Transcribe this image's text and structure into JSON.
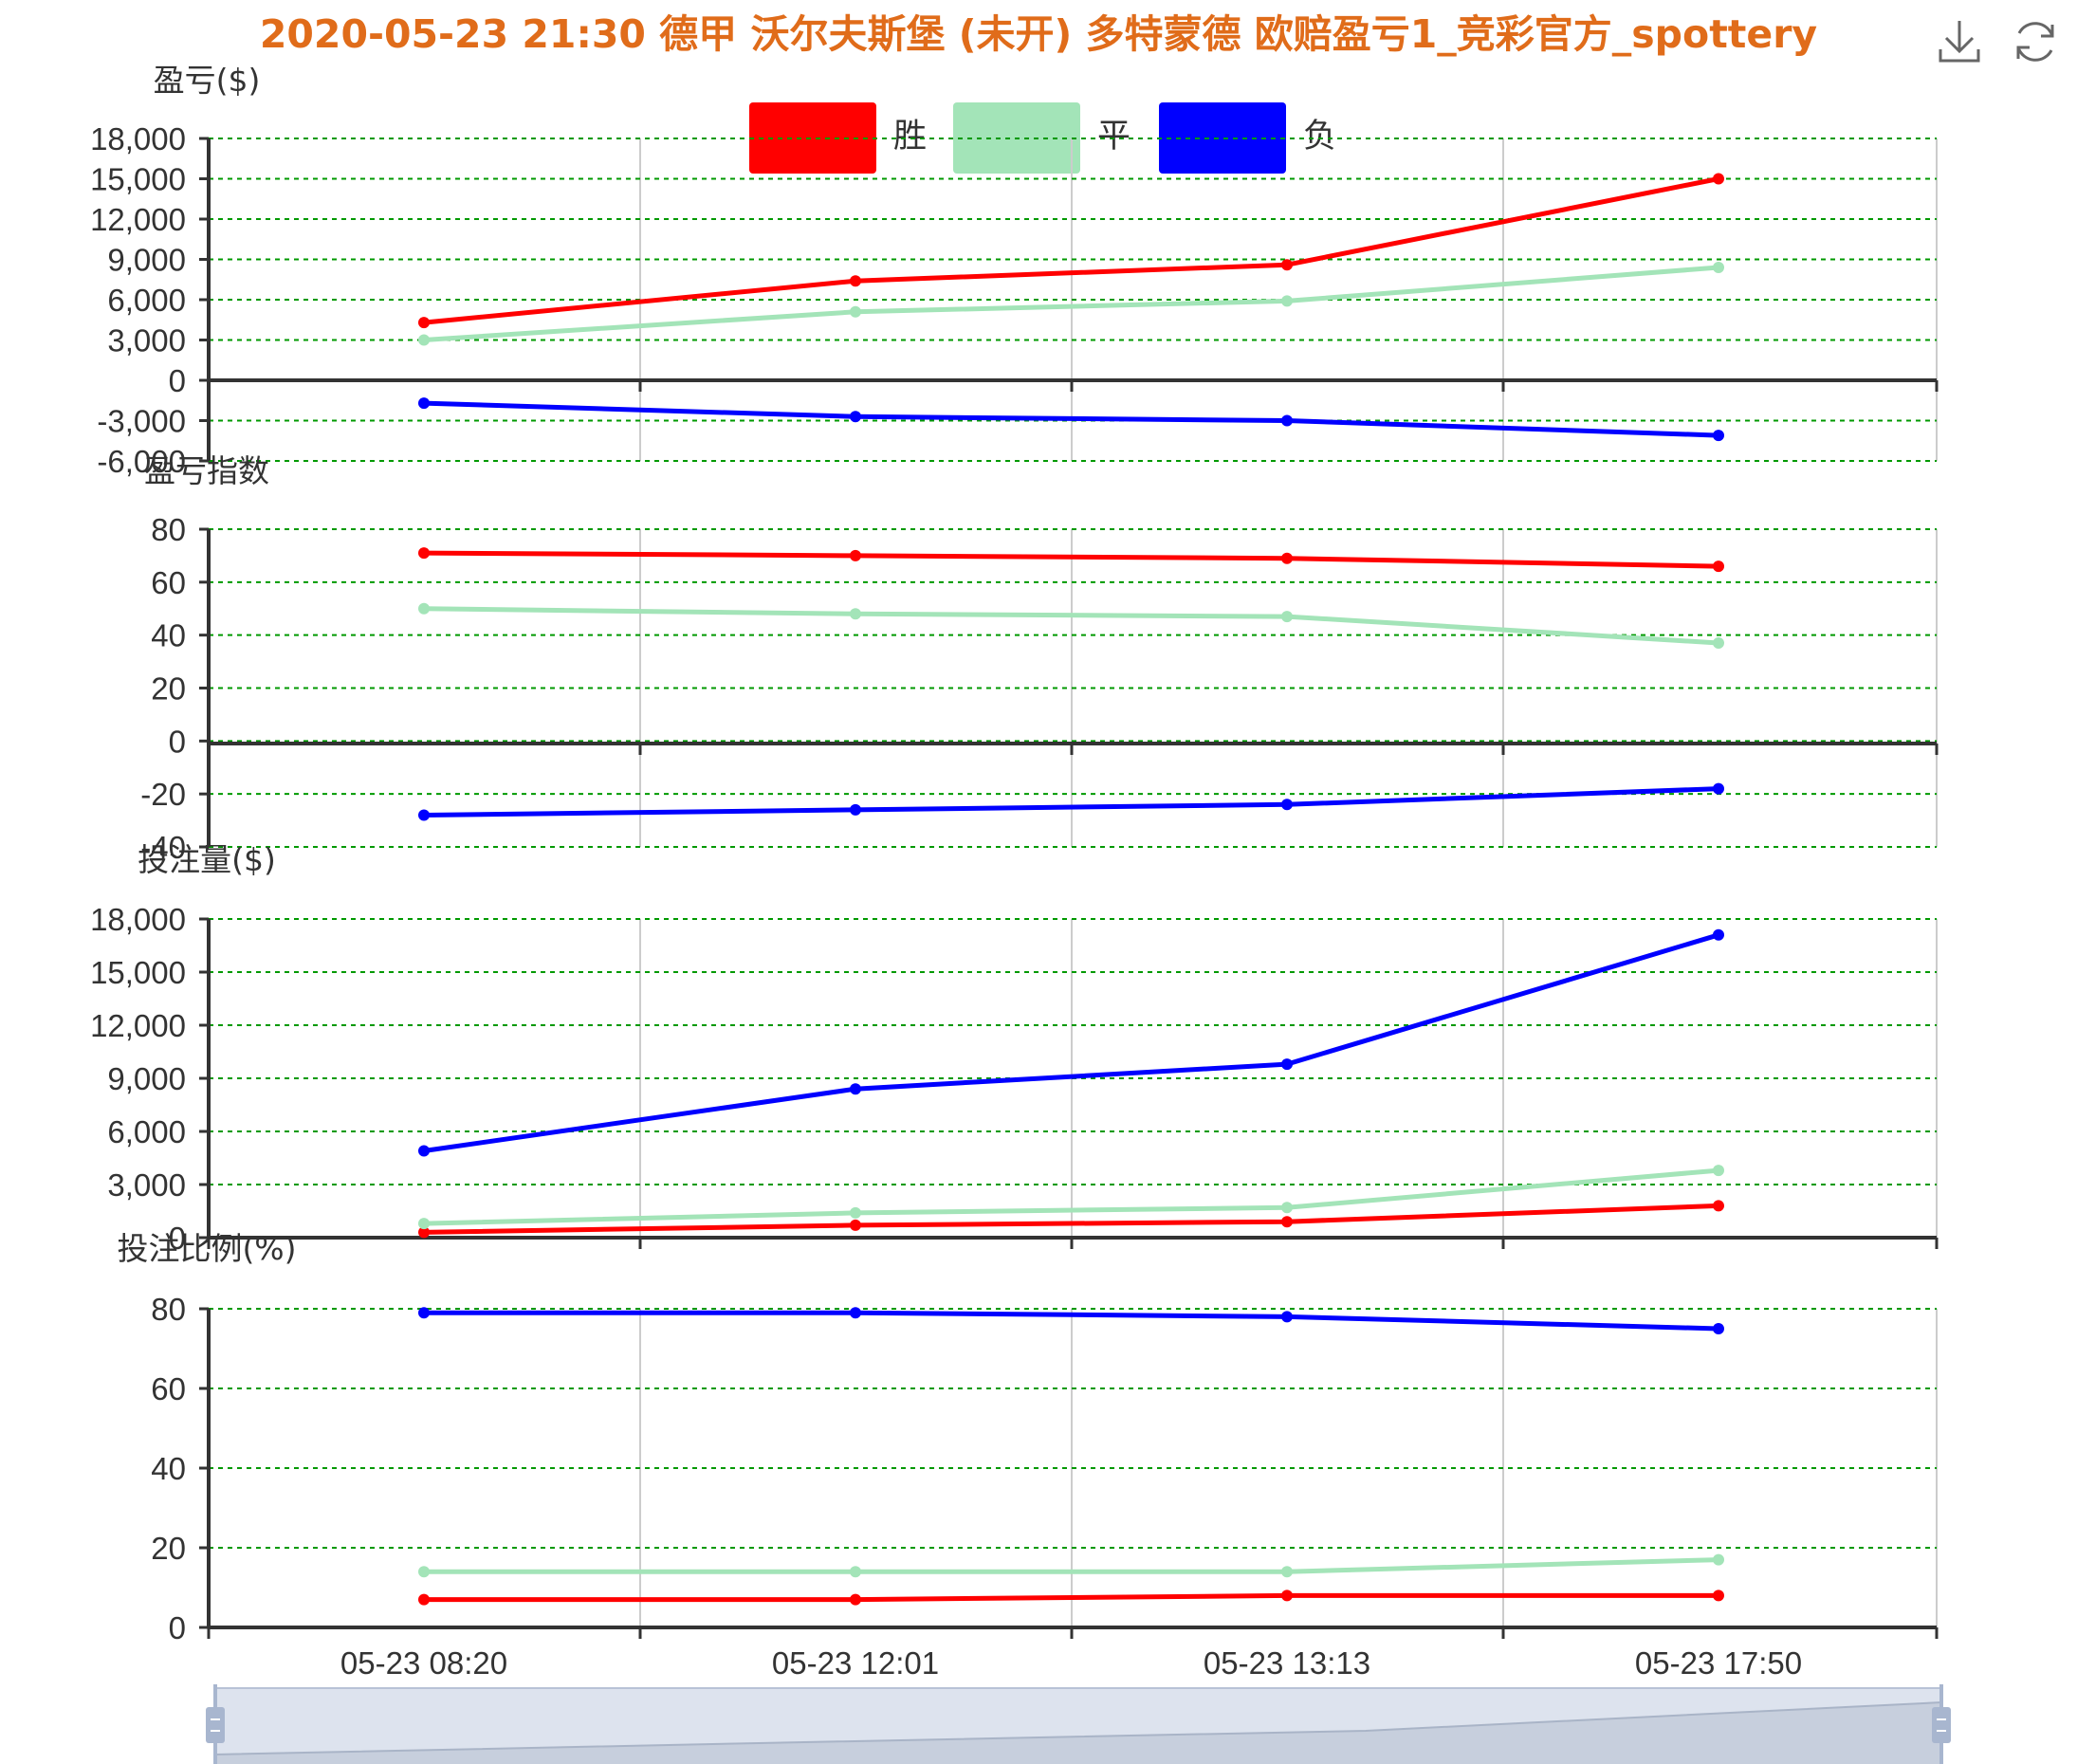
{
  "title": "2020-05-23 21:30 德甲 沃尔夫斯堡 (未开) 多特蒙德 欧赔盈亏1_竞彩官方_spottery",
  "toolbox": {
    "download_icon": "download-icon",
    "refresh_icon": "refresh-icon"
  },
  "colors": {
    "title": "#e06c1a",
    "win": "#ff0000",
    "draw": "#a3e4b8",
    "loss": "#0000ff",
    "grid": "#009900",
    "axis": "#333333"
  },
  "chart_data": {
    "type": "line",
    "x": [
      "05-23 08:20",
      "05-23 12:01",
      "05-23 13:13",
      "05-23 17:50"
    ],
    "legend": {
      "position": "top-center",
      "items": [
        "胜",
        "平",
        "负"
      ]
    },
    "panels": [
      {
        "ylabel": "盈亏($)",
        "ylim": [
          -6000,
          18000
        ],
        "yticks": [
          "18,000",
          "15,000",
          "12,000",
          "9,000",
          "6,000",
          "3,000",
          "0",
          "-3,000",
          "-6,000"
        ],
        "series": [
          {
            "name": "胜",
            "values": [
              4300,
              7400,
              8600,
              15000
            ]
          },
          {
            "name": "平",
            "values": [
              3000,
              5100,
              5900,
              8400
            ]
          },
          {
            "name": "负",
            "values": [
              -1700,
              -2700,
              -3000,
              -4100
            ]
          }
        ]
      },
      {
        "ylabel": "盈亏指数",
        "ylim": [
          -40,
          80
        ],
        "yticks": [
          "80",
          "60",
          "40",
          "20",
          "0",
          "-20",
          "-40"
        ],
        "series": [
          {
            "name": "胜",
            "values": [
              71,
              70,
              69,
              66
            ]
          },
          {
            "name": "平",
            "values": [
              50,
              48,
              47,
              37
            ]
          },
          {
            "name": "负",
            "values": [
              -28,
              -26,
              -24,
              -18
            ]
          }
        ]
      },
      {
        "ylabel": "投注量($)",
        "ylim": [
          0,
          18000
        ],
        "yticks": [
          "18,000",
          "15,000",
          "12,000",
          "9,000",
          "6,000",
          "3,000",
          "0"
        ],
        "series": [
          {
            "name": "胜",
            "values": [
              300,
              700,
              900,
              1800
            ]
          },
          {
            "name": "平",
            "values": [
              800,
              1400,
              1700,
              3800
            ]
          },
          {
            "name": "负",
            "values": [
              4900,
              8400,
              9800,
              17100
            ]
          }
        ]
      },
      {
        "ylabel": "投注比例(%)",
        "ylim": [
          0,
          80
        ],
        "yticks": [
          "80",
          "60",
          "40",
          "20",
          "0"
        ],
        "series": [
          {
            "name": "胜",
            "values": [
              7,
              7,
              8,
              8
            ]
          },
          {
            "name": "平",
            "values": [
              14,
              14,
              14,
              17
            ]
          },
          {
            "name": "负",
            "values": [
              79,
              79,
              78,
              75
            ]
          }
        ]
      }
    ],
    "grid": true,
    "datazoom": {
      "range": [
        0,
        100
      ]
    }
  }
}
